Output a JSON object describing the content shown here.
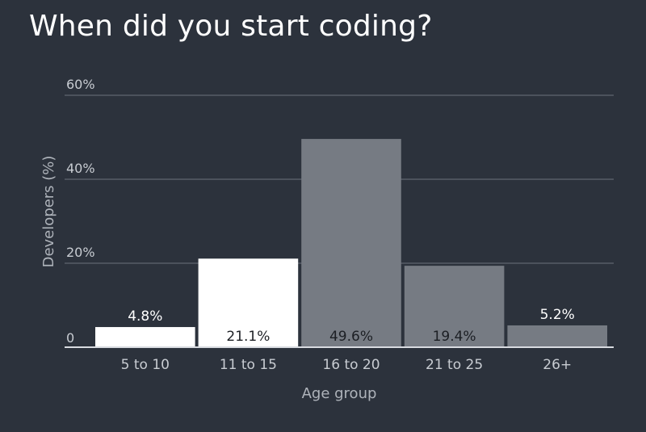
{
  "chart_data": {
    "type": "bar",
    "title": "When did you start coding?",
    "xlabel": "Age group",
    "ylabel": "Developers (%)",
    "categories": [
      "5 to 10",
      "11 to 15",
      "16 to 20",
      "21 to 25",
      "26+"
    ],
    "values": [
      4.8,
      21.1,
      49.6,
      19.4,
      5.2
    ],
    "value_labels": [
      "4.8%",
      "21.1%",
      "49.6%",
      "19.4%",
      "5.2%"
    ],
    "ylim": [
      0,
      60
    ],
    "yticks": [
      {
        "value": 0,
        "label": "0"
      },
      {
        "value": 20,
        "label": "20%"
      },
      {
        "value": 40,
        "label": "40%"
      },
      {
        "value": 60,
        "label": "60%"
      }
    ],
    "grid": true,
    "highlighted": [
      true,
      true,
      false,
      false,
      false
    ],
    "colors": {
      "background": "#2c323c",
      "highlight_bar": "#ffffff",
      "bar": "#767b83",
      "gridline": "#6d737b",
      "label_dark": "#1c1f24",
      "label_light": "#ffffff"
    }
  }
}
